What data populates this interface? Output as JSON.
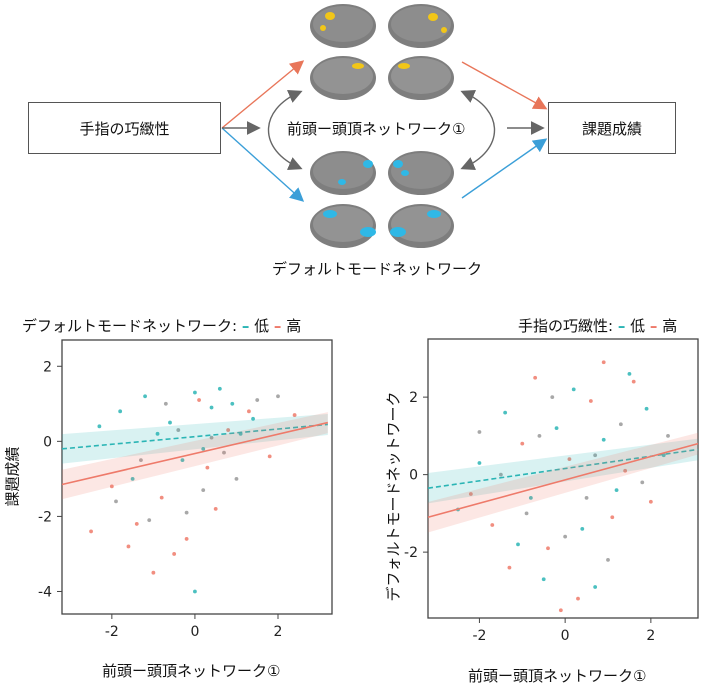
{
  "diagram": {
    "left_box": "手指の巧緻性",
    "right_box": "課題成績",
    "center_label": "前頭ー頭頂ネットワーク①",
    "bottom_label": "デフォルトモードネットワーク",
    "colors": {
      "yellow": "#f2c618",
      "blue": "#2fb8e6",
      "orange_arrow": "#e8765a",
      "blue_arrow": "#3b9fd8",
      "gray_arrow": "#666666"
    }
  },
  "left_legend": {
    "title": "デフォルトモードネットワーク:",
    "low": "低",
    "high": "高"
  },
  "right_legend": {
    "title": "手指の巧緻性:",
    "low": "低",
    "high": "高"
  },
  "chart_data": [
    {
      "type": "scatter",
      "title": "",
      "xlabel": "前頭ー頭頂ネットワーク①",
      "ylabel": "課題成績",
      "xlim": [
        -3.2,
        3.3
      ],
      "ylim": [
        -4.6,
        2.7
      ],
      "xticks": [
        "-2",
        "0",
        "2"
      ],
      "yticks": [
        "2",
        "0",
        "-2",
        "-4"
      ],
      "series": [
        {
          "name": "低",
          "color": "#2bb5b5",
          "line": [
            [
              -3.2,
              -0.2
            ],
            [
              3.2,
              0.45
            ]
          ],
          "points": [
            [
              -1.8,
              0.8
            ],
            [
              -1.2,
              1.2
            ],
            [
              -0.6,
              0.5
            ],
            [
              0,
              1.3
            ],
            [
              0.4,
              0.9
            ],
            [
              0.9,
              1.0
            ],
            [
              1.4,
              0.6
            ],
            [
              -0.9,
              0.2
            ],
            [
              0.2,
              -0.2
            ],
            [
              -1.5,
              -1.0
            ],
            [
              0.6,
              1.4
            ],
            [
              -0.3,
              -0.5
            ],
            [
              1.1,
              0.2
            ],
            [
              -2.3,
              0.4
            ],
            [
              0.0,
              -4.0
            ]
          ]
        },
        {
          "name": "高",
          "color": "#ee7a6a",
          "line": [
            [
              -3.2,
              -1.15
            ],
            [
              3.2,
              0.5
            ]
          ],
          "points": [
            [
              -2.0,
              -1.2
            ],
            [
              -1.4,
              -2.2
            ],
            [
              -0.8,
              -1.5
            ],
            [
              -0.2,
              -2.6
            ],
            [
              0.3,
              -0.7
            ],
            [
              0.8,
              0.3
            ],
            [
              1.3,
              0.8
            ],
            [
              -1.6,
              -2.8
            ],
            [
              -0.5,
              -3.0
            ],
            [
              0.5,
              -1.8
            ],
            [
              1.8,
              -0.4
            ],
            [
              -2.5,
              -2.4
            ],
            [
              -1.0,
              -3.5
            ],
            [
              2.4,
              0.7
            ],
            [
              0.1,
              1.1
            ]
          ]
        },
        {
          "name": "",
          "color": "#999999",
          "points": [
            [
              -1.3,
              -0.5
            ],
            [
              -0.4,
              0.3
            ],
            [
              0.7,
              -0.3
            ],
            [
              1.5,
              1.1
            ],
            [
              -1.9,
              -1.6
            ],
            [
              0.2,
              -1.3
            ],
            [
              1.0,
              -1.0
            ],
            [
              -0.7,
              1.0
            ],
            [
              2.0,
              1.2
            ],
            [
              -1.1,
              -2.1
            ],
            [
              0.4,
              0.1
            ],
            [
              -0.2,
              -1.9
            ]
          ]
        }
      ]
    },
    {
      "type": "scatter",
      "title": "",
      "xlabel": "前頭ー頭頂ネットワーク①",
      "ylabel": "デフォルトモードネットワーク",
      "xlim": [
        -3.2,
        3.1
      ],
      "ylim": [
        -3.7,
        3.5
      ],
      "xticks": [
        "-2",
        "0",
        "2"
      ],
      "yticks": [
        "2",
        "0",
        "-2"
      ],
      "series": [
        {
          "name": "低",
          "color": "#2bb5b5",
          "line": [
            [
              -3.2,
              -0.35
            ],
            [
              3.1,
              0.65
            ]
          ],
          "points": [
            [
              -2.0,
              0.3
            ],
            [
              -1.4,
              1.6
            ],
            [
              -0.8,
              -0.6
            ],
            [
              -0.2,
              1.2
            ],
            [
              0.4,
              -1.4
            ],
            [
              0.9,
              0.9
            ],
            [
              1.5,
              2.6
            ],
            [
              -1.1,
              -1.8
            ],
            [
              0.2,
              2.2
            ],
            [
              -0.5,
              -2.7
            ],
            [
              1.2,
              -0.4
            ],
            [
              2.3,
              0.5
            ],
            [
              -2.5,
              -0.9
            ],
            [
              0.7,
              -2.9
            ],
            [
              1.9,
              1.7
            ]
          ]
        },
        {
          "name": "高",
          "color": "#ee7a6a",
          "line": [
            [
              -3.2,
              -1.1
            ],
            [
              3.1,
              0.8
            ]
          ],
          "points": [
            [
              -1.7,
              -1.3
            ],
            [
              -1.0,
              0.8
            ],
            [
              -0.4,
              -1.9
            ],
            [
              0.1,
              0.4
            ],
            [
              0.6,
              1.9
            ],
            [
              1.1,
              -1.1
            ],
            [
              1.6,
              2.4
            ],
            [
              -2.2,
              -0.5
            ],
            [
              -0.7,
              2.5
            ],
            [
              0.3,
              -3.2
            ],
            [
              1.4,
              0.1
            ],
            [
              2.0,
              -0.7
            ],
            [
              -1.3,
              -2.4
            ],
            [
              0.9,
              2.9
            ],
            [
              -0.1,
              -3.5
            ]
          ]
        },
        {
          "name": "",
          "color": "#999999",
          "points": [
            [
              -1.5,
              0.0
            ],
            [
              -0.6,
              1.0
            ],
            [
              0.5,
              -0.6
            ],
            [
              1.3,
              1.3
            ],
            [
              -0.9,
              -1.0
            ],
            [
              0.0,
              -1.6
            ],
            [
              1.8,
              -0.2
            ],
            [
              -2.0,
              1.1
            ],
            [
              0.7,
              0.5
            ],
            [
              -0.3,
              2.0
            ],
            [
              1.0,
              -2.2
            ],
            [
              2.4,
              1.0
            ]
          ]
        }
      ]
    }
  ]
}
